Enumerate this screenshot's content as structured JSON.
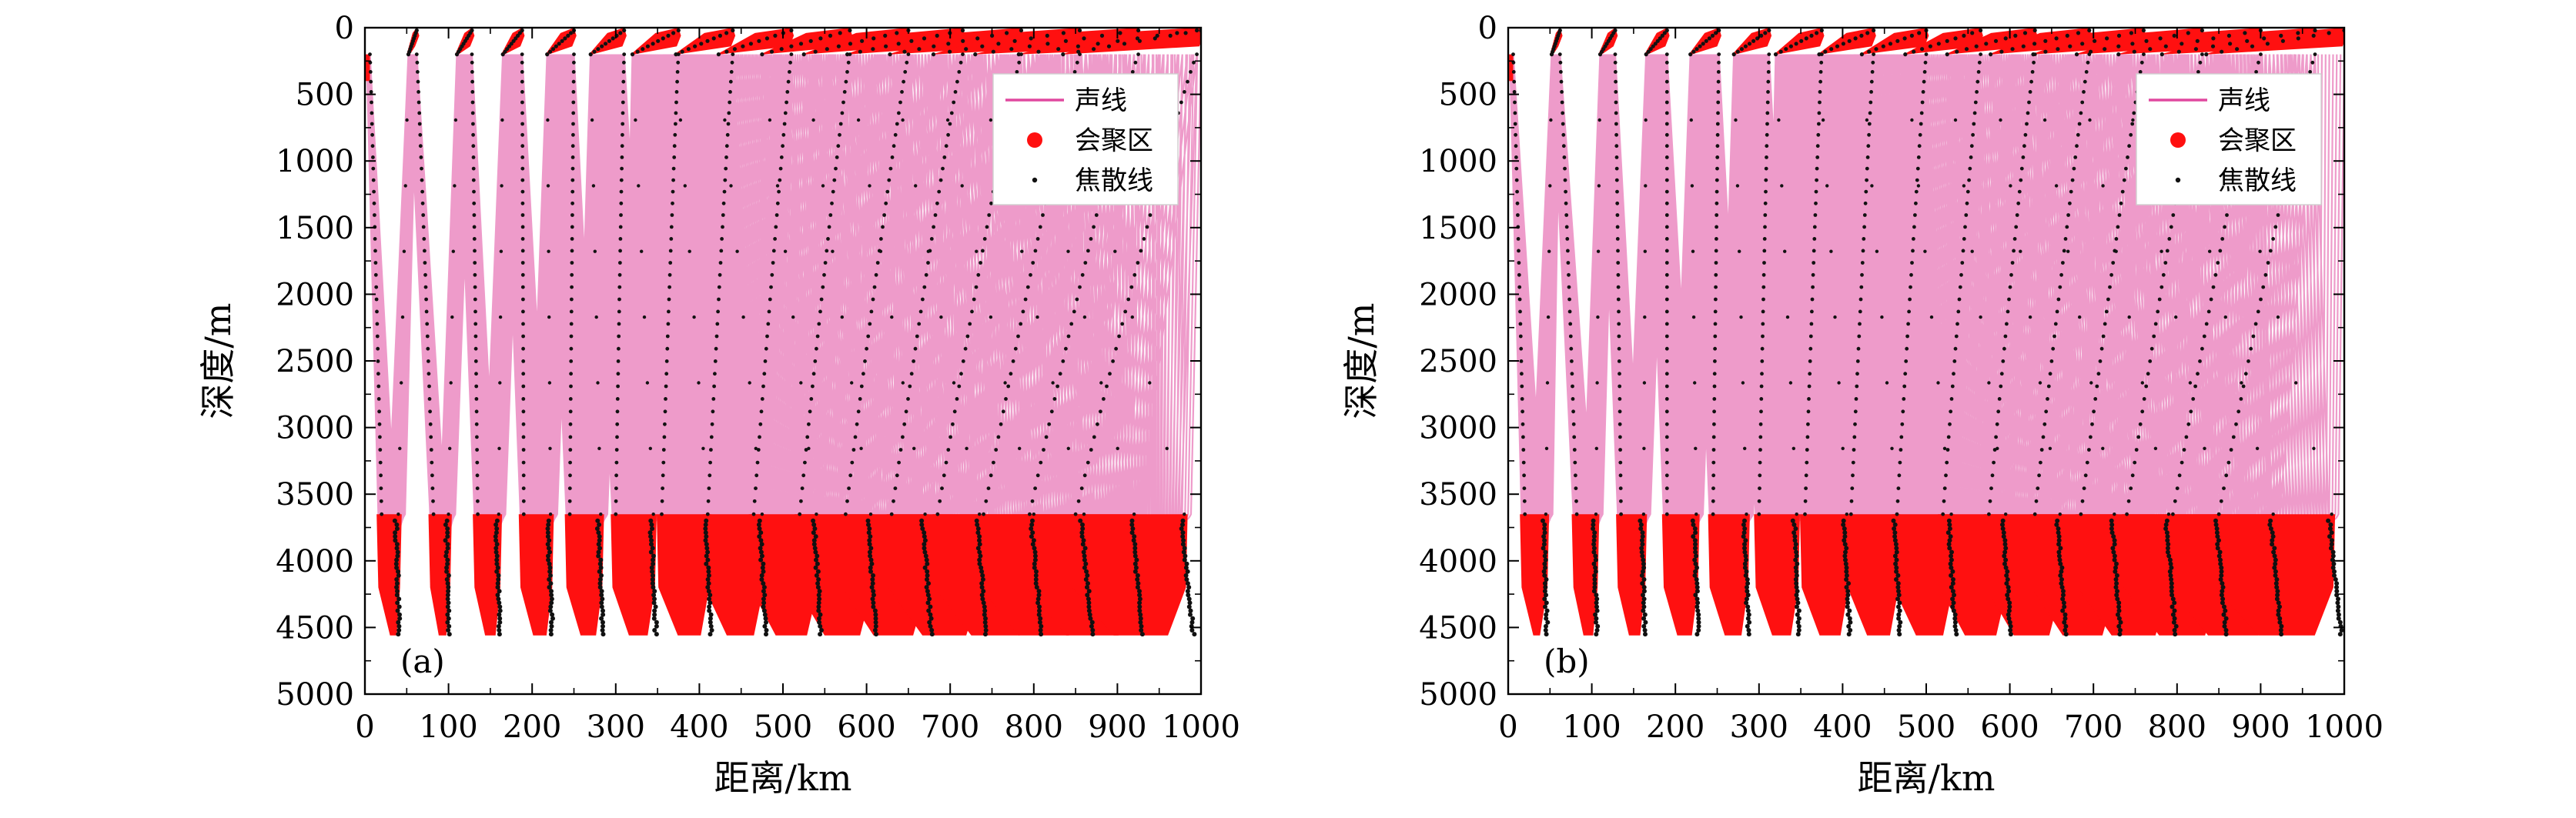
{
  "colors": {
    "ray": "#e0489f",
    "convergence": "#ff1010",
    "caustic": "#111111"
  },
  "chart_data": [
    {
      "type": "line",
      "panel_label": "(a)",
      "xlabel": "距离/km",
      "ylabel": "深度/m",
      "xlim": [
        0,
        1000
      ],
      "ylim": [
        5000,
        0
      ],
      "y_inverted": true,
      "xticks": [
        "0",
        "100",
        "200",
        "300",
        "400",
        "500",
        "600",
        "700",
        "800",
        "900",
        "1000"
      ],
      "yticks": [
        "0",
        "500",
        "1000",
        "1500",
        "2000",
        "2500",
        "3000",
        "3500",
        "4000",
        "4500",
        "5000"
      ],
      "legend": {
        "position": "top-right",
        "entries": [
          {
            "label": "声线",
            "marker": "line"
          },
          {
            "label": "会聚区",
            "marker": "big-dot"
          },
          {
            "label": "焦散线",
            "marker": "small-dot"
          }
        ]
      },
      "series": [
        {
          "name": "声线",
          "kind": "rays",
          "surface_depth": 200,
          "bottom_depth": 3650,
          "max_depth": 4560,
          "cycles": [
            {
              "bottom_x": [
                20,
                40
              ],
              "top_x": [
                52,
                62
              ]
            },
            {
              "bottom_x": [
                82,
                100
              ],
              "top_x": [
                110,
                128
              ]
            },
            {
              "bottom_x": [
                135,
                160
              ],
              "top_x": [
                165,
                188
              ]
            },
            {
              "bottom_x": [
                190,
                222
              ],
              "top_x": [
                218,
                250
              ]
            },
            {
              "bottom_x": [
                245,
                282
              ],
              "top_x": [
                270,
                310
              ]
            },
            {
              "bottom_x": [
                300,
                345
              ],
              "top_x": [
                320,
                375
              ]
            },
            {
              "bottom_x": [
                355,
                410
              ],
              "top_x": [
                372,
                440
              ]
            },
            {
              "bottom_x": [
                410,
                475
              ],
              "top_x": [
                423,
                510
              ]
            },
            {
              "bottom_x": [
                465,
                540
              ],
              "top_x": [
                475,
                580
              ]
            },
            {
              "bottom_x": [
                520,
                605
              ],
              "top_x": [
                525,
                650
              ]
            },
            {
              "bottom_x": [
                575,
                670
              ],
              "top_x": [
                577,
                715
              ]
            },
            {
              "bottom_x": [
                630,
                735
              ],
              "top_x": [
                628,
                785
              ]
            },
            {
              "bottom_x": [
                685,
                800
              ],
              "top_x": [
                680,
                855
              ]
            },
            {
              "bottom_x": [
                740,
                860
              ],
              "top_x": [
                730,
                925
              ]
            },
            {
              "bottom_x": [
                795,
                920
              ],
              "top_x": [
                782,
                995
              ]
            },
            {
              "bottom_x": [
                850,
                980
              ],
              "top_x": [
                835,
                1000
              ]
            }
          ]
        },
        {
          "name": "会聚区",
          "kind": "convergence_zones"
        },
        {
          "name": "焦散线",
          "kind": "caustics"
        }
      ]
    },
    {
      "type": "line",
      "panel_label": "(b)",
      "xlabel": "距离/km",
      "ylabel": "深度/m",
      "xlim": [
        0,
        1000
      ],
      "ylim": [
        5000,
        0
      ],
      "y_inverted": true,
      "xticks": [
        "0",
        "100",
        "200",
        "300",
        "400",
        "500",
        "600",
        "700",
        "800",
        "900",
        "1000"
      ],
      "yticks": [
        "0",
        "500",
        "1000",
        "1500",
        "2000",
        "2500",
        "3000",
        "3500",
        "4000",
        "4500",
        "5000"
      ],
      "legend": {
        "position": "top-right",
        "entries": [
          {
            "label": "声线",
            "marker": "line"
          },
          {
            "label": "会聚区",
            "marker": "big-dot"
          },
          {
            "label": "焦散线",
            "marker": "small-dot"
          }
        ]
      },
      "series": [
        {
          "name": "声线",
          "kind": "rays",
          "surface_depth": 200,
          "bottom_depth": 3650,
          "max_depth": 4560,
          "cycles": [
            {
              "bottom_x": [
                20,
                45
              ],
              "top_x": [
                52,
                62
              ]
            },
            {
              "bottom_x": [
                82,
                105
              ],
              "top_x": [
                110,
                128
              ]
            },
            {
              "bottom_x": [
                135,
                162
              ],
              "top_x": [
                165,
                190
              ]
            },
            {
              "bottom_x": [
                190,
                225
              ],
              "top_x": [
                218,
                252
              ]
            },
            {
              "bottom_x": [
                245,
                285
              ],
              "top_x": [
                270,
                312
              ]
            },
            {
              "bottom_x": [
                300,
                345
              ],
              "top_x": [
                320,
                375
              ]
            },
            {
              "bottom_x": [
                355,
                405
              ],
              "top_x": [
                372,
                437
              ]
            },
            {
              "bottom_x": [
                410,
                465
              ],
              "top_x": [
                423,
                500
              ]
            },
            {
              "bottom_x": [
                465,
                530
              ],
              "top_x": [
                475,
                565
              ]
            },
            {
              "bottom_x": [
                520,
                595
              ],
              "top_x": [
                525,
                630
              ]
            },
            {
              "bottom_x": [
                575,
                660
              ],
              "top_x": [
                577,
                695
              ]
            },
            {
              "bottom_x": [
                630,
                725
              ],
              "top_x": [
                628,
                760
              ]
            },
            {
              "bottom_x": [
                685,
                790
              ],
              "top_x": [
                680,
                830
              ]
            },
            {
              "bottom_x": [
                740,
                850
              ],
              "top_x": [
                730,
                900
              ]
            },
            {
              "bottom_x": [
                795,
                915
              ],
              "top_x": [
                782,
                965
              ]
            },
            {
              "bottom_x": [
                850,
                985
              ],
              "top_x": [
                835,
                1000
              ]
            }
          ]
        },
        {
          "name": "会聚区",
          "kind": "convergence_zones"
        },
        {
          "name": "焦散线",
          "kind": "caustics"
        }
      ]
    }
  ]
}
